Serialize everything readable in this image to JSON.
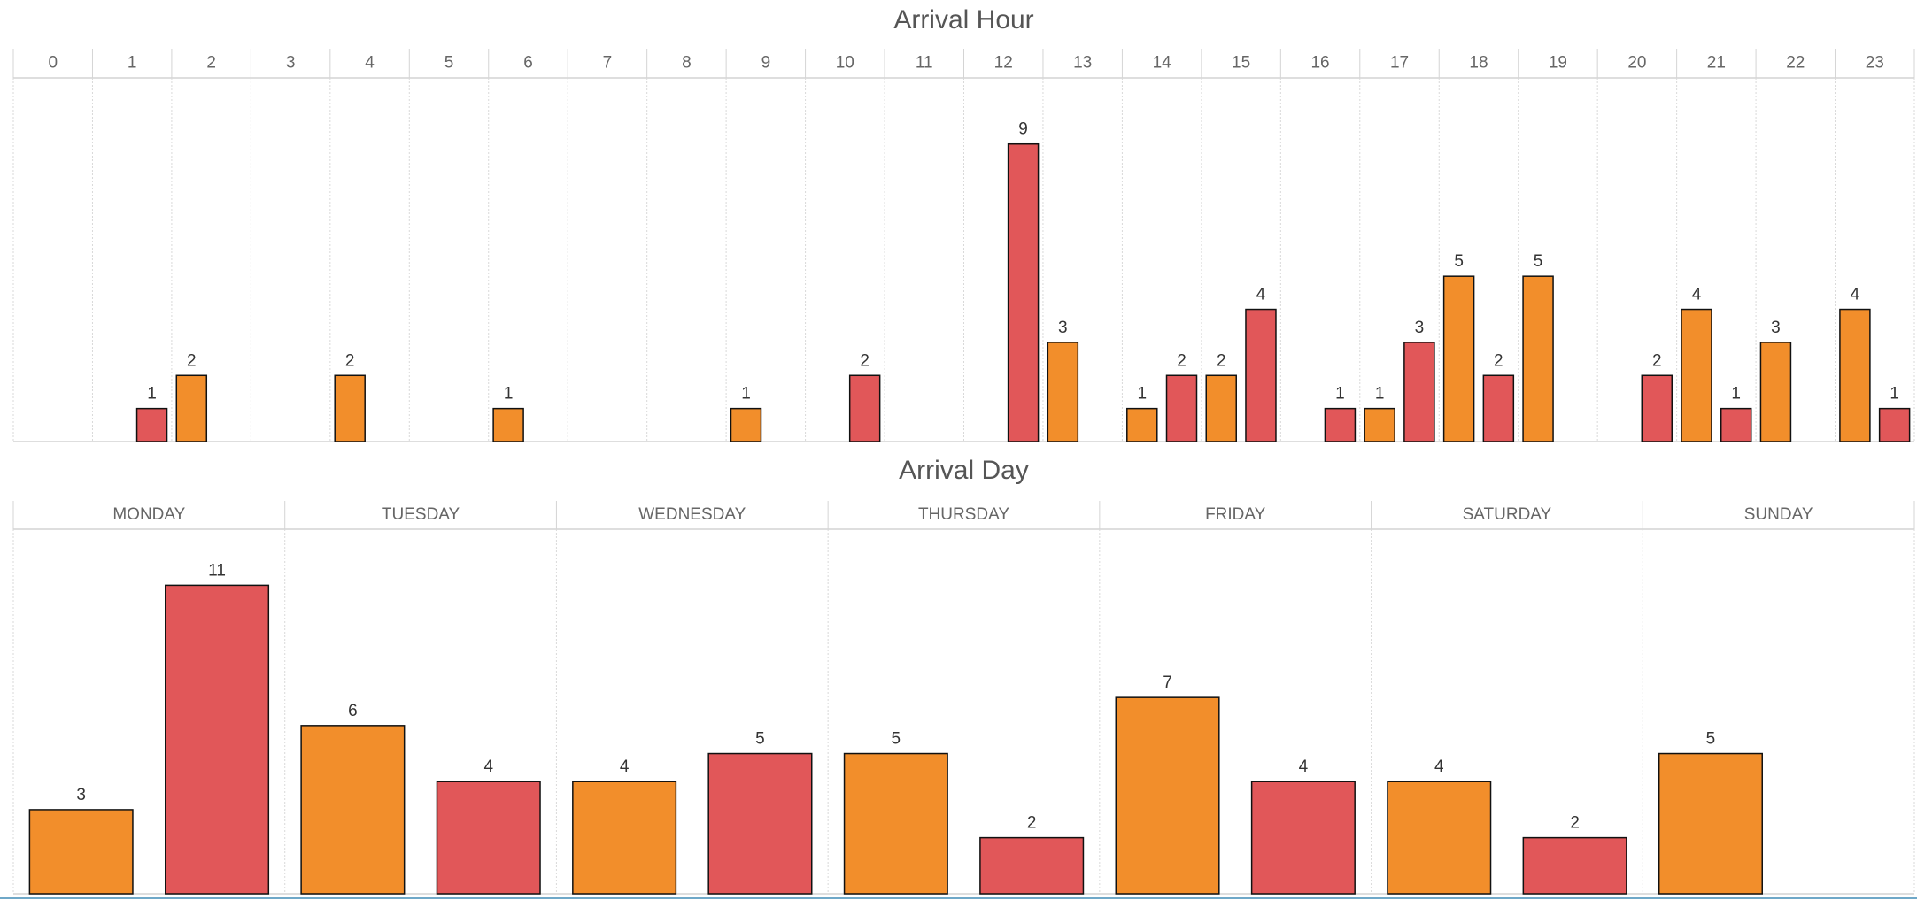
{
  "chart_data": [
    {
      "type": "bar",
      "title": "Arrival Hour",
      "categories": [
        "0",
        "1",
        "2",
        "3",
        "4",
        "5",
        "6",
        "7",
        "8",
        "9",
        "10",
        "11",
        "12",
        "13",
        "14",
        "15",
        "16",
        "17",
        "18",
        "19",
        "20",
        "21",
        "22",
        "23"
      ],
      "series": [
        {
          "color": "#f28e2b",
          "values": [
            null,
            null,
            2,
            null,
            2,
            null,
            1,
            null,
            null,
            1,
            null,
            null,
            null,
            3,
            1,
            2,
            null,
            1,
            5,
            5,
            null,
            4,
            3,
            4
          ]
        },
        {
          "color": "#e15759",
          "values": [
            null,
            1,
            null,
            null,
            null,
            null,
            null,
            null,
            null,
            null,
            2,
            null,
            9,
            null,
            2,
            4,
            1,
            3,
            2,
            null,
            2,
            1,
            null,
            1
          ]
        }
      ],
      "ylim": [
        0,
        11
      ]
    },
    {
      "type": "bar",
      "title": "Arrival Day",
      "categories": [
        "MONDAY",
        "TUESDAY",
        "WEDNESDAY",
        "THURSDAY",
        "FRIDAY",
        "SATURDAY",
        "SUNDAY"
      ],
      "series": [
        {
          "color": "#f28e2b",
          "values": [
            3,
            6,
            4,
            5,
            7,
            4,
            5
          ]
        },
        {
          "color": "#e15759",
          "values": [
            11,
            4,
            5,
            2,
            4,
            2,
            null
          ]
        }
      ],
      "ylim": [
        0,
        13
      ]
    }
  ]
}
